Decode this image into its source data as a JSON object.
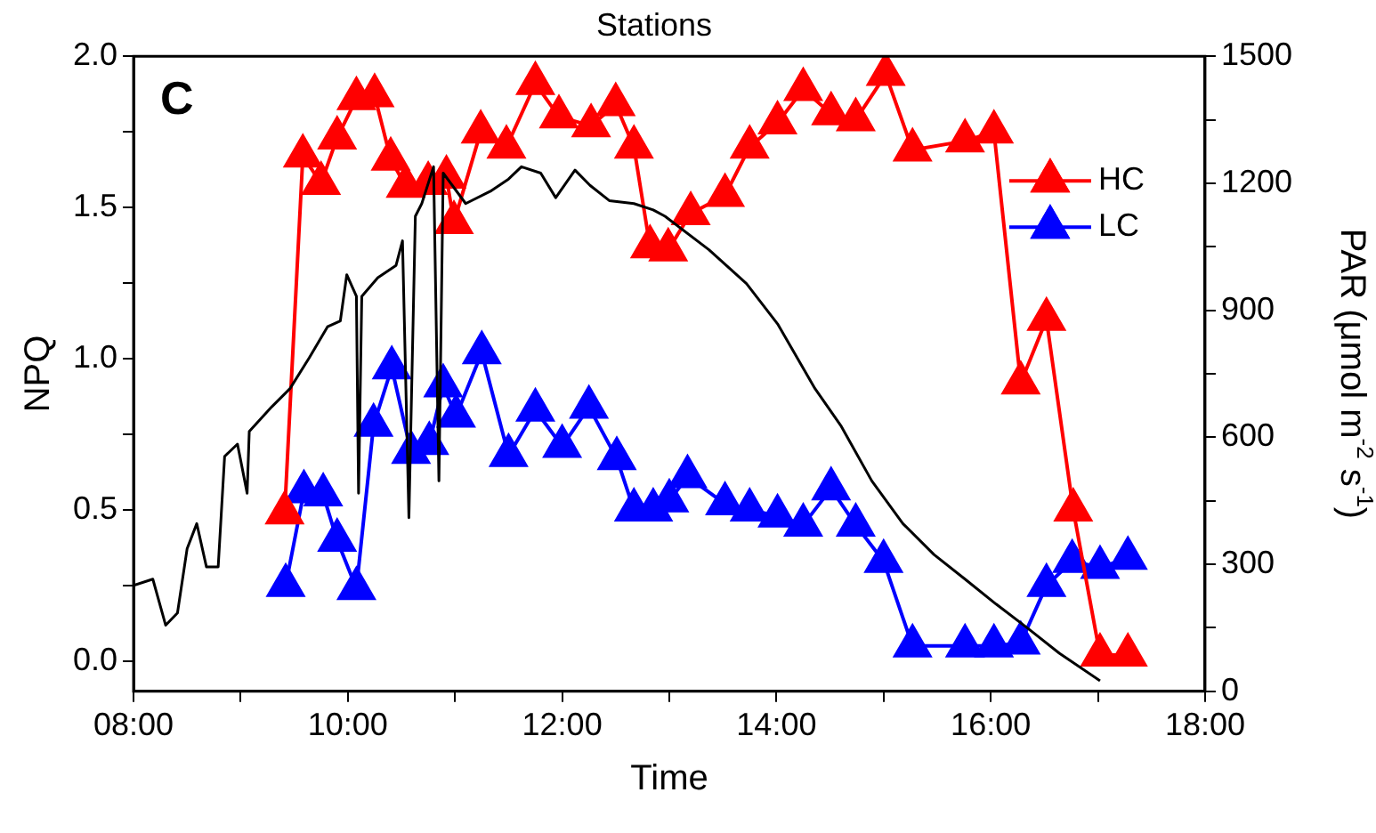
{
  "chart_data": {
    "type": "line",
    "title": "Stations",
    "xlabel": "Time",
    "ylabel": "NPQ",
    "y2label": "PAR (μmol m$^{-2}$ s$^{-1}$)",
    "annotations": [
      "C"
    ],
    "xlim": [
      8,
      18
    ],
    "xticks": [
      {
        "value": 8,
        "label": "08:00"
      },
      {
        "value": 9,
        "label": null
      },
      {
        "value": 10,
        "label": "10:00"
      },
      {
        "value": 11,
        "label": null
      },
      {
        "value": 12,
        "label": "12:00"
      },
      {
        "value": 13,
        "label": null
      },
      {
        "value": 14,
        "label": "14:00"
      },
      {
        "value": 15,
        "label": null
      },
      {
        "value": 16,
        "label": "16:00"
      },
      {
        "value": 17,
        "label": null
      },
      {
        "value": 18,
        "label": "18:00"
      }
    ],
    "ylim": [
      -0.1,
      2.0
    ],
    "yticks": [
      {
        "value": 0,
        "label": "0.0"
      },
      {
        "value": 0.25,
        "label": null
      },
      {
        "value": 0.5,
        "label": "0.5"
      },
      {
        "value": 0.75,
        "label": null
      },
      {
        "value": 1,
        "label": "1.0"
      },
      {
        "value": 1.25,
        "label": null
      },
      {
        "value": 1.5,
        "label": "1.5"
      },
      {
        "value": 1.75,
        "label": null
      },
      {
        "value": 2,
        "label": "2.0"
      }
    ],
    "y2lim": [
      0,
      1500
    ],
    "y2ticks": [
      0,
      {
        "value": 150,
        "label": null
      },
      300,
      {
        "value": 450,
        "label": null
      },
      600,
      {
        "value": 750,
        "label": null
      },
      900,
      {
        "value": 1050,
        "label": null
      },
      1200,
      {
        "value": 1350,
        "label": null
      },
      1500
    ],
    "legend": "top right",
    "marker": "triangle",
    "series": [
      {
        "name": "HC",
        "color": "#ff0000",
        "x": [
          9.41,
          9.58,
          9.75,
          9.9,
          10.08,
          10.25,
          10.4,
          10.54,
          10.75,
          10.92,
          10.99,
          11.24,
          11.48,
          11.75,
          11.97,
          12.27,
          12.5,
          12.67,
          12.82,
          12.99,
          13.2,
          13.52,
          13.75,
          14.01,
          14.25,
          14.51,
          14.74,
          15.02,
          15.27,
          15.76,
          16.03,
          16.28,
          16.52,
          16.77,
          17.02,
          17.28
        ],
        "values": [
          0.49,
          1.67,
          1.58,
          1.73,
          1.86,
          1.87,
          1.66,
          1.57,
          1.58,
          1.6,
          1.45,
          1.75,
          1.7,
          1.91,
          1.8,
          1.77,
          1.84,
          1.7,
          1.37,
          1.36,
          1.48,
          1.54,
          1.7,
          1.78,
          1.89,
          1.81,
          1.79,
          1.94,
          1.69,
          1.72,
          1.75,
          0.92,
          1.13,
          0.5,
          0.02,
          0.02
        ]
      },
      {
        "name": "LC",
        "color": "#0000ff",
        "x": [
          9.42,
          9.59,
          9.77,
          9.9,
          10.08,
          10.24,
          10.41,
          10.59,
          10.76,
          10.89,
          11.01,
          11.25,
          11.5,
          11.75,
          12.0,
          12.25,
          12.51,
          12.67,
          12.85,
          13.0,
          13.17,
          13.52,
          13.75,
          14.01,
          14.25,
          14.51,
          14.74,
          15.0,
          15.27,
          15.76,
          16.03,
          16.28,
          16.52,
          16.76,
          17.02,
          17.28
        ],
        "values": [
          0.25,
          0.56,
          0.55,
          0.4,
          0.24,
          0.78,
          0.97,
          0.69,
          0.72,
          0.91,
          0.81,
          1.02,
          0.68,
          0.83,
          0.71,
          0.84,
          0.67,
          0.5,
          0.5,
          0.53,
          0.61,
          0.52,
          0.5,
          0.48,
          0.45,
          0.57,
          0.45,
          0.33,
          0.05,
          0.05,
          0.05,
          0.06,
          0.25,
          0.33,
          0.31,
          0.34
        ]
      },
      {
        "axis": "y2",
        "color": "#000000",
        "marker": "none",
        "x": [
          8.0,
          8.18,
          8.3,
          8.41,
          8.5,
          8.59,
          8.68,
          8.79,
          8.85,
          8.97,
          9.06,
          9.08,
          9.29,
          9.46,
          9.64,
          9.81,
          9.93,
          9.99,
          10.08,
          10.1,
          10.13,
          10.28,
          10.45,
          10.51,
          10.57,
          10.63,
          10.69,
          10.8,
          10.85,
          10.89,
          11.1,
          11.33,
          11.5,
          11.62,
          11.8,
          11.94,
          12.12,
          12.26,
          12.44,
          12.67,
          12.85,
          12.96,
          13.37,
          13.72,
          14.01,
          14.36,
          14.6,
          14.89,
          15.18,
          15.47,
          15.76,
          16.05,
          16.35,
          16.64,
          17.02
        ],
        "values": [
          250,
          265,
          156,
          185,
          337,
          396,
          294,
          294,
          555,
          584,
          468,
          614,
          672,
          715,
          788,
          861,
          875,
          984,
          933,
          468,
          933,
          977,
          1006,
          1064,
          410,
          1122,
          1152,
          1239,
          497,
          1224,
          1152,
          1181,
          1210,
          1239,
          1224,
          1166,
          1231,
          1195,
          1159,
          1152,
          1137,
          1122,
          1043,
          963,
          868,
          715,
          628,
          497,
          396,
          323,
          265,
          206,
          148,
          90,
          25
        ]
      }
    ]
  }
}
